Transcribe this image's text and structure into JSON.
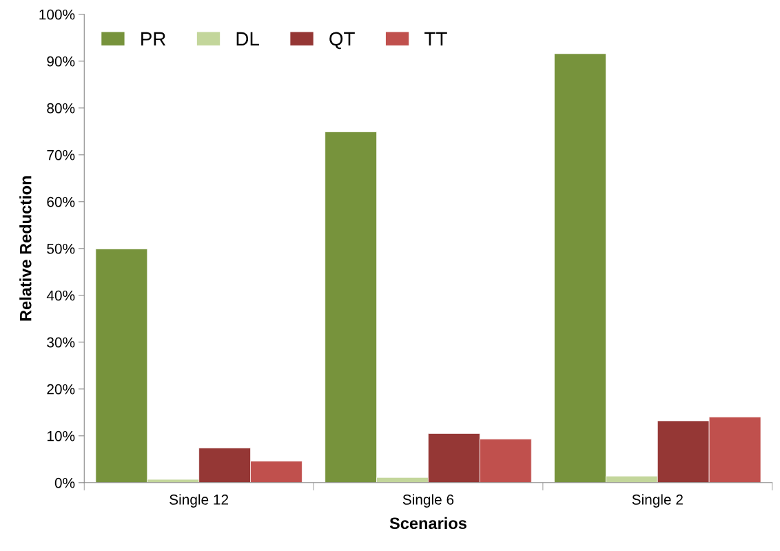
{
  "chart_data": {
    "type": "bar",
    "xlabel": "Scenarios",
    "ylabel": "Relative Reduction",
    "categories": [
      "Single 12",
      "Single 6",
      "Single 2"
    ],
    "series": [
      {
        "name": "PR",
        "color": "#77933c",
        "values": [
          49.9,
          74.9,
          91.6
        ]
      },
      {
        "name": "DL",
        "color": "#c3d69b",
        "values": [
          0.7,
          1.1,
          1.4
        ]
      },
      {
        "name": "QT",
        "color": "#953735",
        "values": [
          7.4,
          10.5,
          13.2
        ]
      },
      {
        "name": "TT",
        "color": "#c0504d",
        "values": [
          4.6,
          9.3,
          14.0
        ]
      }
    ],
    "ylim": [
      0,
      100
    ],
    "yticks": [
      {
        "value": 0,
        "label": "0%"
      },
      {
        "value": 10,
        "label": "10%"
      },
      {
        "value": 20,
        "label": "20%"
      },
      {
        "value": 30,
        "label": "30%"
      },
      {
        "value": 40,
        "label": "40%"
      },
      {
        "value": 50,
        "label": "50%"
      },
      {
        "value": 60,
        "label": "60%"
      },
      {
        "value": 70,
        "label": "70%"
      },
      {
        "value": 80,
        "label": "80%"
      },
      {
        "value": 90,
        "label": "90%"
      },
      {
        "value": 100,
        "label": "100%"
      }
    ],
    "grid": false,
    "legend": "top left"
  }
}
